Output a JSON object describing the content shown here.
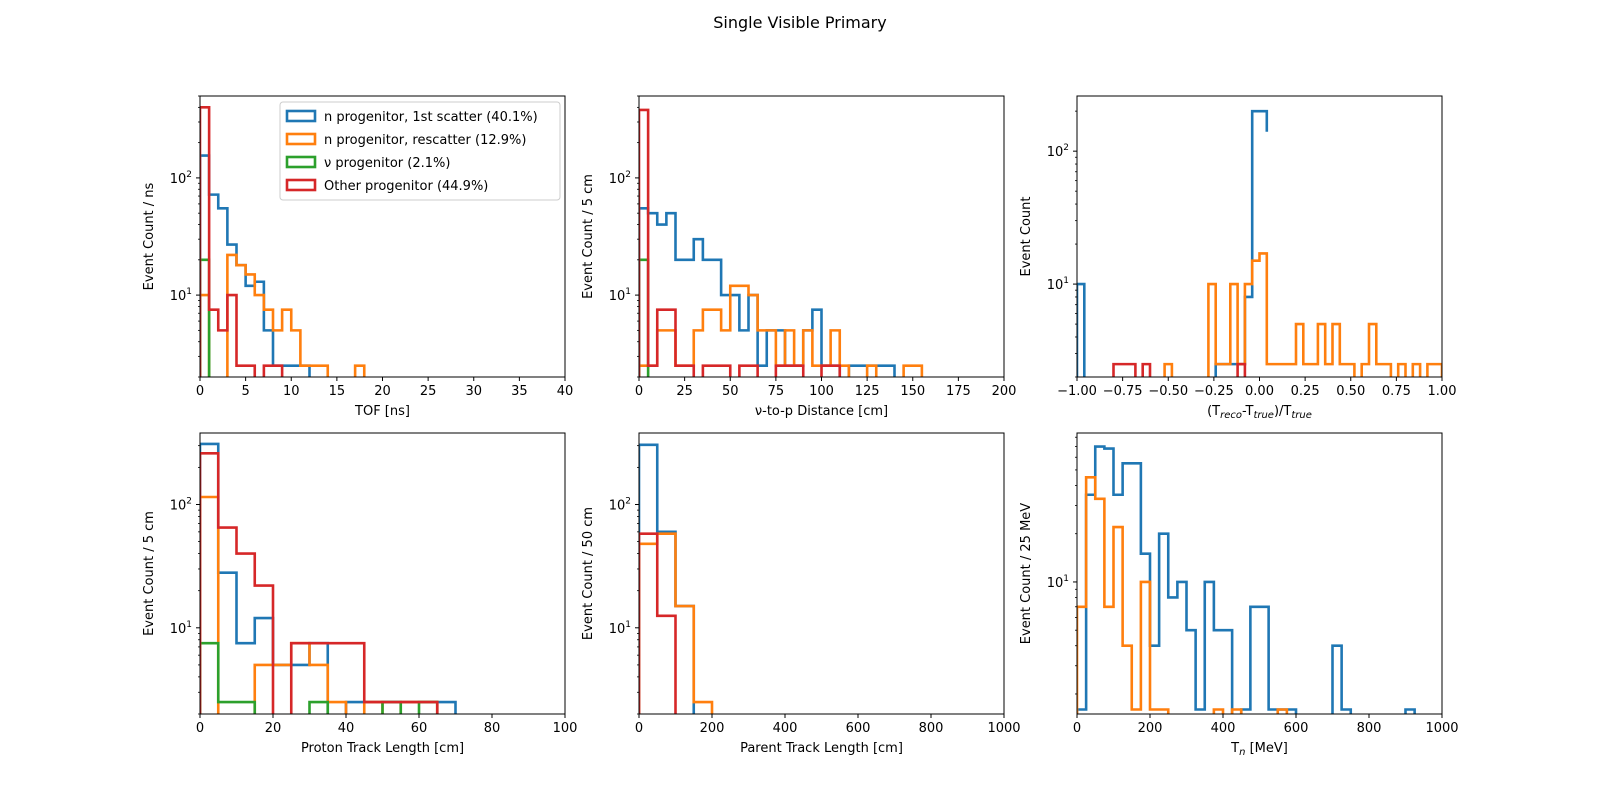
{
  "figure_title": "Single Visible Primary",
  "colors": {
    "n_first": "#1f77b4",
    "n_rescatter": "#ff7f0e",
    "nu": "#2ca02c",
    "other": "#d62728"
  },
  "chart_data": [
    {
      "type": "histogram-step",
      "id": "tof",
      "xlabel": "TOF [ns]",
      "ylabel": "Event Count / ns",
      "xlim": [
        0,
        40
      ],
      "ylim": [
        2,
        500
      ],
      "yscale": "log",
      "xticks": [
        0,
        5,
        10,
        15,
        20,
        25,
        30,
        35,
        40
      ],
      "xtick_labels": [
        "0",
        "5",
        "10",
        "15",
        "20",
        "25",
        "30",
        "35",
        "40"
      ],
      "yticks": [
        10,
        100
      ],
      "legend": {
        "placement": "upper-right",
        "entries": [
          {
            "label": "n progenitor, 1st scatter (40.1%)",
            "color": "#1f77b4"
          },
          {
            "label": "n progenitor, rescatter (12.9%)",
            "color": "#ff7f0e"
          },
          {
            "label": "ν progenitor (2.1%)",
            "color": "#2ca02c"
          },
          {
            "label": "Other progenitor (44.9%)",
            "color": "#d62728"
          }
        ]
      },
      "series": [
        {
          "name": "n progenitor, 1st scatter (40.1%)",
          "color": "#1f77b4",
          "edges": [
            0,
            1,
            2,
            3,
            4,
            5,
            6,
            7,
            8,
            9,
            10,
            11,
            12
          ],
          "values": [
            155,
            72,
            55,
            27,
            18,
            12,
            13,
            5,
            2.5,
            2.5,
            2.5,
            2.5
          ]
        },
        {
          "name": "n progenitor, rescatter (12.9%)",
          "color": "#ff7f0e",
          "edges": [
            0,
            1,
            2,
            3,
            4,
            5,
            6,
            7,
            8,
            9,
            10,
            11,
            12,
            13,
            14,
            15,
            16,
            17,
            18
          ],
          "values": [
            10,
            0,
            0,
            22,
            18,
            15,
            10,
            7.5,
            5,
            7.5,
            5,
            2.5,
            2.5,
            2.5,
            0,
            0,
            0,
            2.5
          ]
        },
        {
          "name": "ν progenitor (2.1%)",
          "color": "#2ca02c",
          "edges": [
            0,
            1
          ],
          "values": [
            20
          ]
        },
        {
          "name": "Other progenitor (44.9%)",
          "color": "#d62728",
          "edges": [
            0,
            1,
            2,
            3,
            4,
            5,
            6,
            7,
            8,
            9
          ],
          "values": [
            400,
            7.5,
            5,
            10,
            2.5,
            2.5,
            0,
            2.5,
            2.5
          ]
        }
      ]
    },
    {
      "type": "histogram-step",
      "id": "distance",
      "xlabel": "ν-to-p Distance [cm]",
      "ylabel": "Event Count / 5 cm",
      "xlim": [
        0,
        200
      ],
      "ylim": [
        2,
        500
      ],
      "yscale": "log",
      "xticks": [
        0,
        25,
        50,
        75,
        100,
        125,
        150,
        175,
        200
      ],
      "xtick_labels": [
        "0",
        "25",
        "50",
        "75",
        "100",
        "125",
        "150",
        "175",
        "200"
      ],
      "yticks": [
        10,
        100
      ],
      "series": [
        {
          "name": "n progenitor, 1st scatter (40.1%)",
          "color": "#1f77b4",
          "edges": [
            0,
            5,
            10,
            15,
            20,
            25,
            30,
            35,
            40,
            45,
            50,
            55,
            60,
            65,
            70,
            75,
            80,
            85,
            90,
            95,
            100,
            105,
            110,
            115,
            120,
            125,
            130,
            135,
            140
          ],
          "values": [
            55,
            50,
            40,
            50,
            20,
            20,
            30,
            20,
            20,
            10,
            10,
            5,
            10,
            2.5,
            5,
            5,
            2.5,
            2.5,
            5,
            7.5,
            2.5,
            2.5,
            0,
            2.5,
            2.5,
            2.5,
            2.5,
            2.5
          ]
        },
        {
          "name": "n progenitor, rescatter (12.9%)",
          "color": "#ff7f0e",
          "edges": [
            0,
            5,
            10,
            15,
            20,
            25,
            30,
            35,
            40,
            45,
            50,
            55,
            60,
            65,
            70,
            75,
            80,
            85,
            90,
            95,
            100,
            105,
            110,
            115,
            120,
            125,
            130,
            135,
            140,
            145,
            150,
            155
          ],
          "values": [
            2.5,
            2.5,
            5,
            5,
            2.5,
            2.5,
            5,
            7.5,
            7.5,
            5,
            12,
            12,
            10,
            5,
            5,
            2.5,
            5,
            2.5,
            5,
            2.5,
            2.5,
            5,
            2.5,
            0,
            0,
            2.5,
            0,
            0,
            0,
            2.5,
            2.5
          ]
        },
        {
          "name": "ν progenitor (2.1%)",
          "color": "#2ca02c",
          "edges": [
            0,
            5
          ],
          "values": [
            20
          ]
        },
        {
          "name": "Other progenitor (44.9%)",
          "color": "#d62728",
          "edges": [
            0,
            5,
            10,
            15,
            20,
            25,
            30,
            35,
            40,
            45,
            50,
            55,
            60,
            65,
            70,
            75,
            80,
            85,
            90,
            95,
            100,
            105,
            110
          ],
          "values": [
            380,
            2.5,
            7.5,
            7.5,
            2.5,
            2.5,
            0,
            2.5,
            2.5,
            2.5,
            0,
            2.5,
            2.5,
            0,
            0,
            2.5,
            2.5,
            2.5,
            0,
            0,
            2.5,
            2.5
          ]
        }
      ]
    },
    {
      "type": "histogram-step",
      "id": "resolution",
      "xlabel_parts": [
        "(T",
        "reco",
        "-T",
        "true",
        ")/T",
        "true"
      ],
      "ylabel": "Event Count",
      "xlim": [
        -1.0,
        1.0
      ],
      "ylim": [
        2,
        260
      ],
      "yscale": "log",
      "xticks": [
        -1.0,
        -0.75,
        -0.5,
        -0.25,
        0.0,
        0.25,
        0.5,
        0.75,
        1.0
      ],
      "xtick_labels": [
        "−1.00",
        "−0.75",
        "−0.50",
        "−0.25",
        "0.00",
        "0.25",
        "0.50",
        "0.75",
        "1.00"
      ],
      "yticks": [
        10,
        100
      ],
      "series": [
        {
          "name": "n progenitor, 1st scatter (40.1%)",
          "color": "#1f77b4",
          "edges": [
            -1.0,
            -0.96,
            -0.92,
            -0.88,
            -0.84,
            -0.8,
            -0.76,
            -0.72,
            -0.68,
            -0.64,
            -0.6,
            -0.56,
            -0.52,
            -0.48,
            -0.44,
            -0.4,
            -0.36,
            -0.32,
            -0.28,
            -0.24,
            -0.2,
            -0.16,
            -0.12,
            -0.08,
            -0.04,
            0.0,
            0.04
          ],
          "values": [
            10,
            0,
            0,
            0,
            0,
            0,
            0,
            0,
            0,
            0,
            0,
            0,
            0,
            0,
            0,
            0,
            0,
            0,
            0,
            2.5,
            2.5,
            2.5,
            2.5,
            8,
            200,
            200,
            140
          ]
        },
        {
          "name": "n progenitor, rescatter (12.9%)",
          "color": "#ff7f0e",
          "edges": [
            -0.52,
            -0.48,
            -0.44,
            -0.4,
            -0.36,
            -0.32,
            -0.28,
            -0.24,
            -0.2,
            -0.16,
            -0.12,
            -0.08,
            -0.04,
            0.0,
            0.04,
            0.08,
            0.12,
            0.16,
            0.2,
            0.24,
            0.28,
            0.32,
            0.36,
            0.4,
            0.44,
            0.48,
            0.52,
            0.56,
            0.6,
            0.64,
            0.68,
            0.72,
            0.76,
            0.8,
            0.84,
            0.88,
            0.92,
            0.96,
            1.0
          ],
          "values": [
            2.5,
            0,
            0,
            0,
            0,
            0,
            10,
            2.5,
            2.5,
            10,
            2.5,
            10,
            15,
            17,
            2.5,
            2.5,
            2.5,
            2.5,
            5,
            2.5,
            2.5,
            5,
            2.5,
            5,
            2.5,
            2.5,
            0,
            2.5,
            5,
            2.5,
            2.5,
            0,
            2.5,
            0,
            2.5,
            0,
            2.5,
            2.5
          ]
        },
        {
          "name": "Other progenitor (44.9%)",
          "color": "#d62728",
          "edges": [
            -0.8,
            -0.76,
            -0.72,
            -0.68,
            -0.64,
            -0.6,
            -0.56,
            -0.52,
            -0.48,
            -0.44,
            -0.4,
            -0.36,
            -0.32,
            -0.28,
            -0.24,
            -0.2,
            -0.16,
            -0.12,
            -0.08,
            -0.04,
            0.0
          ],
          "values": [
            2.5,
            2.5,
            2.5,
            0,
            2.5,
            0,
            0,
            0,
            0,
            0,
            0,
            0,
            0,
            0,
            0,
            0,
            0,
            2.5,
            0,
            0
          ]
        }
      ]
    },
    {
      "type": "histogram-step",
      "id": "proton-length",
      "xlabel": "Proton Track Length [cm]",
      "ylabel": "Event Count / 5 cm",
      "xlim": [
        0,
        100
      ],
      "ylim": [
        2,
        380
      ],
      "yscale": "log",
      "xticks": [
        0,
        20,
        40,
        60,
        80,
        100
      ],
      "xtick_labels": [
        "0",
        "20",
        "40",
        "60",
        "80",
        "100"
      ],
      "yticks": [
        10,
        100
      ],
      "series": [
        {
          "name": "n progenitor, 1st scatter (40.1%)",
          "color": "#1f77b4",
          "edges": [
            0,
            5,
            10,
            15,
            20,
            25,
            30,
            35,
            40,
            45,
            50,
            55,
            60,
            65,
            70
          ],
          "values": [
            310,
            28,
            7.5,
            12,
            5,
            5,
            7.5,
            0,
            2.5,
            2.5,
            2.5,
            2.5,
            2.5,
            2.5
          ]
        },
        {
          "name": "n progenitor, rescatter (12.9%)",
          "color": "#ff7f0e",
          "edges": [
            0,
            5,
            10,
            15,
            20,
            25,
            30,
            35,
            40,
            45,
            50,
            55,
            60,
            65
          ],
          "values": [
            115,
            0,
            0,
            5,
            5,
            7.5,
            5,
            2.5,
            0,
            2.5,
            0,
            2.5,
            2.5
          ]
        },
        {
          "name": "ν progenitor (2.1%)",
          "color": "#2ca02c",
          "edges": [
            0,
            5,
            10,
            15,
            20,
            25,
            30,
            35,
            40,
            45,
            50,
            55,
            60,
            65
          ],
          "values": [
            7.5,
            2.5,
            2.5,
            0,
            0,
            0,
            2.5,
            0,
            0,
            0,
            2.5,
            0,
            2.5
          ]
        },
        {
          "name": "Other progenitor (44.9%)",
          "color": "#d62728",
          "edges": [
            0,
            5,
            10,
            15,
            20,
            25,
            30,
            35,
            40,
            45,
            50,
            55,
            60,
            65
          ],
          "values": [
            260,
            65,
            40,
            22,
            0,
            7.5,
            7.5,
            7.5,
            7.5,
            2.5,
            2.5,
            2.5,
            2.5
          ]
        }
      ]
    },
    {
      "type": "histogram-step",
      "id": "parent-length",
      "xlabel": "Parent Track Length [cm]",
      "ylabel": "Event Count / 50 cm",
      "xlim": [
        0,
        1000
      ],
      "ylim": [
        2,
        380
      ],
      "yscale": "log",
      "xticks": [
        0,
        200,
        400,
        600,
        800,
        1000
      ],
      "xtick_labels": [
        "0",
        "200",
        "400",
        "600",
        "800",
        "1000"
      ],
      "yticks": [
        10,
        100
      ],
      "series": [
        {
          "name": "n progenitor, 1st scatter (40.1%)",
          "color": "#1f77b4",
          "edges": [
            0,
            50,
            100,
            150
          ],
          "values": [
            305,
            60,
            15
          ]
        },
        {
          "name": "n progenitor, rescatter (12.9%)",
          "color": "#ff7f0e",
          "edges": [
            0,
            50,
            100,
            150,
            200
          ],
          "values": [
            48,
            58,
            15,
            2.5
          ]
        },
        {
          "name": "Other progenitor (44.9%)",
          "color": "#d62728",
          "edges": [
            0,
            50,
            100
          ],
          "values": [
            58,
            12.5
          ]
        }
      ]
    },
    {
      "type": "histogram-step",
      "id": "tn",
      "xlabel_parts": [
        "T",
        "n",
        " [MeV]"
      ],
      "ylabel": "Event Count / 25 MeV",
      "xlim": [
        0,
        1000
      ],
      "ylim": [
        1.5,
        85
      ],
      "yscale": "log",
      "xticks": [
        0,
        200,
        400,
        600,
        800,
        1000
      ],
      "xtick_labels": [
        "0",
        "200",
        "400",
        "600",
        "800",
        "1000"
      ],
      "yticks": [
        10
      ],
      "series": [
        {
          "name": "n progenitor, 1st scatter (40.1%)",
          "color": "#1f77b4",
          "edges": [
            0,
            25,
            50,
            75,
            100,
            125,
            150,
            175,
            200,
            225,
            250,
            275,
            300,
            325,
            350,
            375,
            400,
            425,
            450,
            475,
            500,
            525,
            550,
            575,
            600,
            625,
            650,
            675,
            700,
            725,
            750,
            775,
            800,
            825,
            850,
            875,
            900,
            925
          ],
          "values": [
            1.6,
            35,
            70,
            68,
            35,
            55,
            55,
            15,
            4,
            20,
            8,
            10,
            5,
            1.6,
            10,
            5,
            5,
            0,
            1.6,
            7,
            7,
            1.6,
            1.6,
            1.6,
            0,
            0,
            0,
            0,
            4,
            1.6,
            0,
            0,
            0,
            0,
            0,
            0,
            1.6
          ]
        },
        {
          "name": "n progenitor, rescatter (12.9%)",
          "color": "#ff7f0e",
          "edges": [
            0,
            25,
            50,
            75,
            100,
            125,
            150,
            175,
            200,
            225,
            250,
            275,
            300,
            325,
            350,
            375,
            400,
            425,
            450,
            475,
            500,
            525,
            550,
            575
          ],
          "values": [
            7,
            45,
            33,
            7,
            22,
            4,
            1.6,
            10,
            1.6,
            1.6,
            0,
            0,
            0,
            0,
            0,
            1.6,
            0,
            1.6,
            0,
            0,
            0,
            0,
            1.6
          ]
        }
      ]
    }
  ]
}
